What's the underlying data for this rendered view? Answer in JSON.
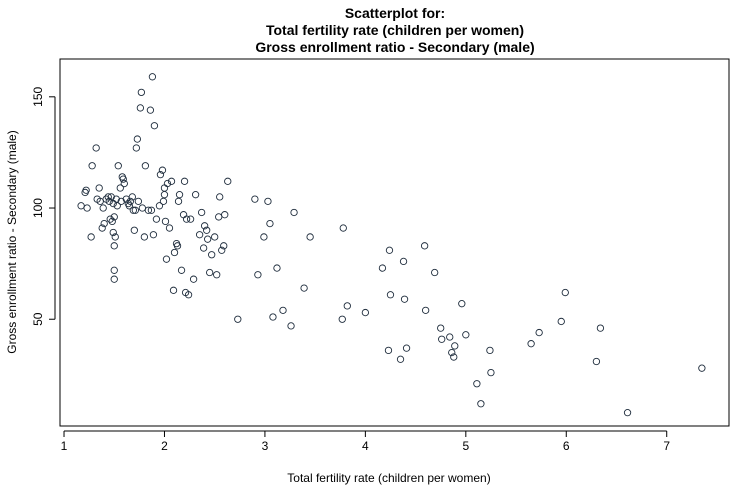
{
  "chart_data": {
    "type": "scatter",
    "title_lines": [
      "Scatterplot for:",
      "Total fertility rate (children per women)",
      "Gross enrollment ratio - Secondary (male)"
    ],
    "xlabel": "Total fertility rate (children per women)",
    "ylabel": "Gross enrollment ratio - Secondary (male)",
    "xlim": [
      0.96,
      7.62
    ],
    "ylim": [
      2,
      167
    ],
    "xticks": [
      1,
      2,
      3,
      4,
      5,
      6,
      7
    ],
    "yticks": [
      50,
      100,
      150
    ],
    "grid": false,
    "marker": "open-circle",
    "point_color": "#1f2d3d",
    "points": [
      [
        1.17,
        101
      ],
      [
        1.21,
        107
      ],
      [
        1.22,
        108
      ],
      [
        1.23,
        100
      ],
      [
        1.27,
        87
      ],
      [
        1.28,
        119
      ],
      [
        1.32,
        127
      ],
      [
        1.33,
        104
      ],
      [
        1.35,
        109
      ],
      [
        1.36,
        103
      ],
      [
        1.38,
        91
      ],
      [
        1.39,
        100
      ],
      [
        1.4,
        93
      ],
      [
        1.42,
        104
      ],
      [
        1.44,
        105
      ],
      [
        1.45,
        103
      ],
      [
        1.46,
        95
      ],
      [
        1.47,
        105
      ],
      [
        1.48,
        94
      ],
      [
        1.49,
        102
      ],
      [
        1.49,
        89
      ],
      [
        1.5,
        96
      ],
      [
        1.5,
        83
      ],
      [
        1.5,
        72
      ],
      [
        1.5,
        68
      ],
      [
        1.51,
        87
      ],
      [
        1.52,
        104
      ],
      [
        1.53,
        101
      ],
      [
        1.54,
        119
      ],
      [
        1.56,
        109
      ],
      [
        1.57,
        103
      ],
      [
        1.58,
        114
      ],
      [
        1.59,
        113
      ],
      [
        1.6,
        111
      ],
      [
        1.62,
        104
      ],
      [
        1.64,
        102
      ],
      [
        1.65,
        101
      ],
      [
        1.66,
        103
      ],
      [
        1.68,
        105
      ],
      [
        1.69,
        99
      ],
      [
        1.7,
        90
      ],
      [
        1.71,
        99
      ],
      [
        1.72,
        127
      ],
      [
        1.73,
        131
      ],
      [
        1.74,
        103
      ],
      [
        1.76,
        145
      ],
      [
        1.77,
        152
      ],
      [
        1.78,
        100
      ],
      [
        1.8,
        87
      ],
      [
        1.81,
        119
      ],
      [
        1.84,
        99
      ],
      [
        1.86,
        144
      ],
      [
        1.87,
        99
      ],
      [
        1.88,
        159
      ],
      [
        1.89,
        88
      ],
      [
        1.9,
        137
      ],
      [
        1.92,
        95
      ],
      [
        1.95,
        101
      ],
      [
        1.96,
        115
      ],
      [
        1.98,
        117
      ],
      [
        1.99,
        103
      ],
      [
        2.0,
        109
      ],
      [
        2.0,
        106
      ],
      [
        2.01,
        94
      ],
      [
        2.02,
        77
      ],
      [
        2.03,
        111
      ],
      [
        2.05,
        91
      ],
      [
        2.07,
        112
      ],
      [
        2.09,
        63
      ],
      [
        2.1,
        80
      ],
      [
        2.12,
        84
      ],
      [
        2.13,
        83
      ],
      [
        2.14,
        103
      ],
      [
        2.15,
        106
      ],
      [
        2.17,
        72
      ],
      [
        2.19,
        97
      ],
      [
        2.2,
        112
      ],
      [
        2.21,
        62
      ],
      [
        2.22,
        95
      ],
      [
        2.24,
        61
      ],
      [
        2.26,
        95
      ],
      [
        2.29,
        68
      ],
      [
        2.31,
        106
      ],
      [
        2.35,
        88
      ],
      [
        2.37,
        98
      ],
      [
        2.39,
        82
      ],
      [
        2.4,
        92
      ],
      [
        2.42,
        90
      ],
      [
        2.43,
        86
      ],
      [
        2.45,
        71
      ],
      [
        2.47,
        79
      ],
      [
        2.5,
        87
      ],
      [
        2.52,
        70
      ],
      [
        2.54,
        96
      ],
      [
        2.55,
        105
      ],
      [
        2.57,
        81
      ],
      [
        2.59,
        83
      ],
      [
        2.6,
        97
      ],
      [
        2.63,
        112
      ],
      [
        2.73,
        50
      ],
      [
        2.9,
        104
      ],
      [
        2.93,
        70
      ],
      [
        2.99,
        87
      ],
      [
        3.03,
        103
      ],
      [
        3.05,
        93
      ],
      [
        3.08,
        51
      ],
      [
        3.12,
        73
      ],
      [
        3.18,
        54
      ],
      [
        3.26,
        47
      ],
      [
        3.29,
        98
      ],
      [
        3.39,
        64
      ],
      [
        3.45,
        87
      ],
      [
        3.77,
        50
      ],
      [
        3.78,
        91
      ],
      [
        3.82,
        56
      ],
      [
        4.0,
        53
      ],
      [
        4.17,
        73
      ],
      [
        4.23,
        36
      ],
      [
        4.24,
        81
      ],
      [
        4.25,
        61
      ],
      [
        4.35,
        32
      ],
      [
        4.38,
        76
      ],
      [
        4.39,
        59
      ],
      [
        4.41,
        37
      ],
      [
        4.59,
        83
      ],
      [
        4.6,
        54
      ],
      [
        4.69,
        71
      ],
      [
        4.75,
        46
      ],
      [
        4.76,
        41
      ],
      [
        4.84,
        42
      ],
      [
        4.86,
        35
      ],
      [
        4.88,
        33
      ],
      [
        4.89,
        38
      ],
      [
        4.96,
        57
      ],
      [
        5.0,
        43
      ],
      [
        5.11,
        21
      ],
      [
        5.15,
        12
      ],
      [
        5.24,
        36
      ],
      [
        5.25,
        26
      ],
      [
        5.65,
        39
      ],
      [
        5.73,
        44
      ],
      [
        5.95,
        49
      ],
      [
        5.99,
        62
      ],
      [
        6.3,
        31
      ],
      [
        6.34,
        46
      ],
      [
        6.61,
        8
      ],
      [
        7.35,
        28
      ]
    ]
  }
}
